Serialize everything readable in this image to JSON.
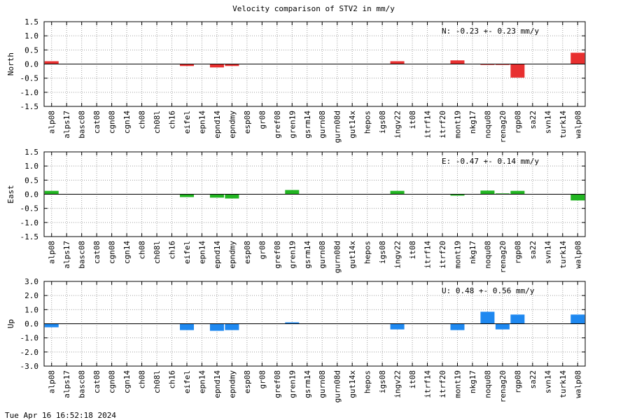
{
  "footer": {
    "timestamp": "Tue Apr 16 16:52:18 2024"
  },
  "chart_data": {
    "type": "bar",
    "title": "Velocity comparison of STV2 in mm/y",
    "categories": [
      "alp08",
      "alps17",
      "basc08",
      "cat08",
      "cgn08",
      "cgn14",
      "ch08",
      "ch08l",
      "ch16",
      "eifel",
      "epn14",
      "epnd14",
      "epndmy",
      "esp08",
      "gr08",
      "gref08",
      "gren19",
      "gsrm14",
      "gurn08",
      "gurn08d",
      "gut14x",
      "hepos",
      "igs08",
      "ingv22",
      "it08",
      "itrf14",
      "itrf20",
      "mont19",
      "nkg17",
      "noqu08",
      "renag20",
      "rgp08",
      "sa22",
      "svn14",
      "turk14",
      "walp08"
    ],
    "grid": true,
    "panels": [
      {
        "ylabel": "North",
        "ylim": [
          -1.5,
          1.5
        ],
        "yticks": [
          "1.5",
          "1.0",
          "0.5",
          "0.0",
          "-0.5",
          "-1.0",
          "-1.5"
        ],
        "color": "#e83030",
        "annotation": "N:  -0.23 +-  0.23 mm/y",
        "values": [
          0.1,
          0,
          0,
          0,
          0,
          0,
          0,
          0,
          0,
          -0.07,
          0,
          -0.12,
          -0.07,
          0,
          0,
          0,
          0,
          0,
          0,
          0,
          0,
          0,
          0,
          0.1,
          0,
          0,
          0,
          0.13,
          0,
          -0.03,
          -0.03,
          -0.48,
          0,
          0,
          0,
          0.4
        ]
      },
      {
        "ylabel": "East",
        "ylim": [
          -1.5,
          1.5
        ],
        "yticks": [
          "1.5",
          "1.0",
          "0.5",
          "0.0",
          "-0.5",
          "-1.0",
          "-1.5"
        ],
        "color": "#22b522",
        "annotation": "E:  -0.47 +-  0.14 mm/y",
        "values": [
          0.12,
          0,
          0,
          0,
          0,
          0,
          0,
          0,
          0,
          -0.1,
          0,
          -0.12,
          -0.15,
          0,
          0,
          0,
          0.15,
          0,
          0,
          0,
          0,
          0,
          0,
          0.12,
          0,
          0,
          0,
          -0.05,
          0,
          0.13,
          0.03,
          0.12,
          0,
          0,
          0,
          -0.22
        ]
      },
      {
        "ylabel": "Up",
        "ylim": [
          -3.0,
          3.0
        ],
        "yticks": [
          "3.0",
          "2.0",
          "1.0",
          "0.0",
          "-1.0",
          "-2.0",
          "-3.0"
        ],
        "color": "#1e88f0",
        "annotation": "U:   0.48 +-  0.56 mm/y",
        "values": [
          -0.25,
          0,
          0,
          0,
          0,
          0,
          0,
          0,
          0,
          -0.45,
          0,
          -0.5,
          -0.45,
          0,
          0,
          0,
          0.1,
          0,
          0,
          0,
          0,
          0,
          0,
          -0.4,
          0,
          0,
          0,
          -0.45,
          0,
          0.85,
          -0.4,
          0.65,
          0,
          0,
          0,
          0.65
        ]
      }
    ]
  }
}
